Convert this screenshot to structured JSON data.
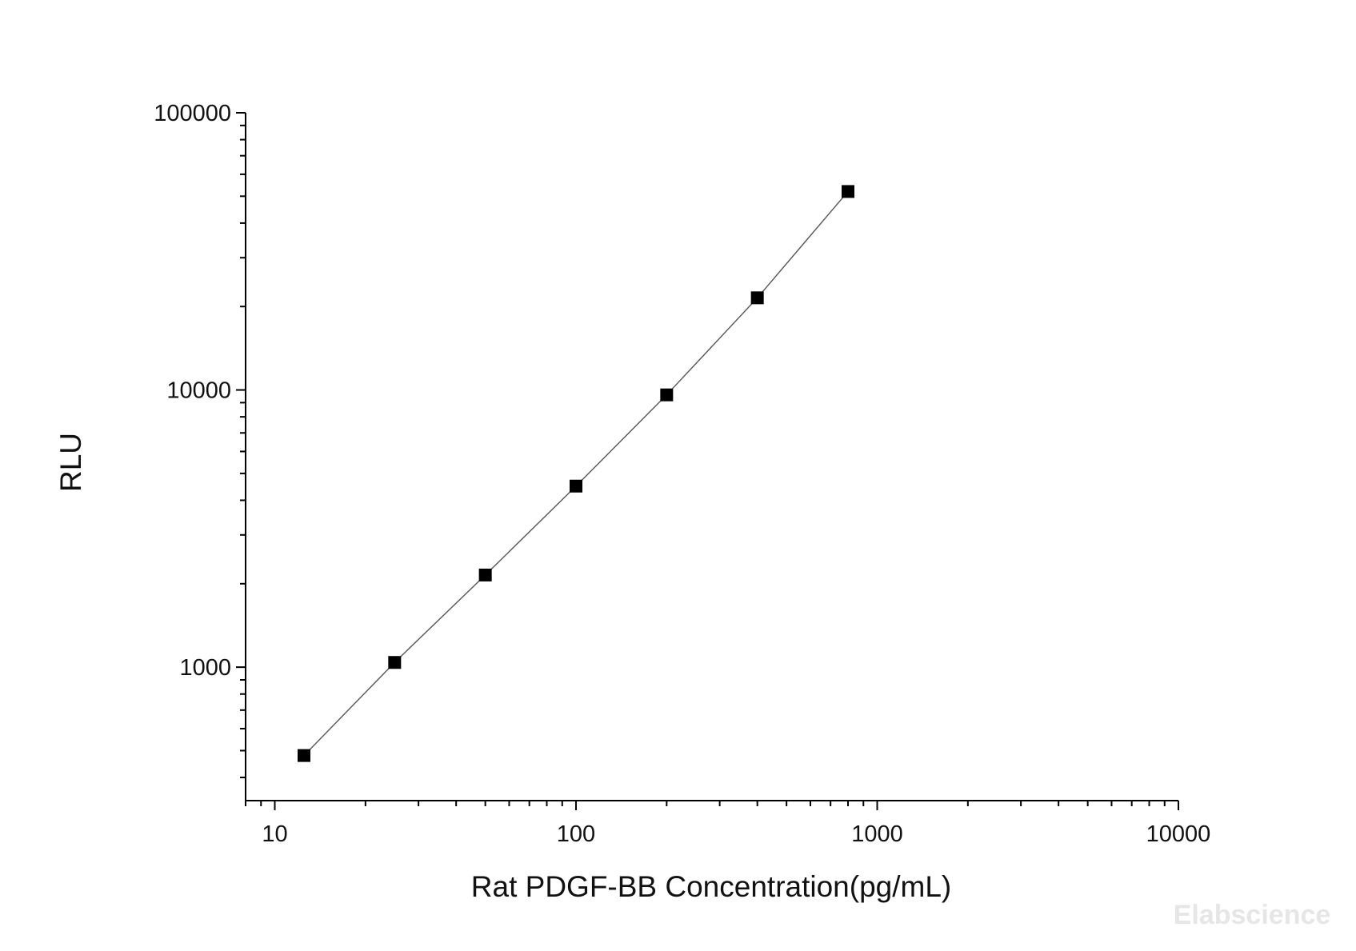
{
  "chart_data": {
    "type": "scatter",
    "title": "",
    "xlabel": "Rat PDGF-BB Concentration(pg/mL)",
    "ylabel": "RLU",
    "x_scale": "log",
    "y_scale": "log",
    "xlim": [
      8,
      10000
    ],
    "ylim": [
      330,
      100000
    ],
    "x_ticks": [
      10,
      100,
      1000,
      10000
    ],
    "x_tick_labels": [
      "10",
      "100",
      "1000",
      "10000"
    ],
    "y_ticks": [
      1000,
      10000,
      100000
    ],
    "y_tick_labels": [
      "1000",
      "10000",
      "100000"
    ],
    "grid": false,
    "legend": "none",
    "series": [
      {
        "marker": "square",
        "line": "fitted curve",
        "x": [
          12.5,
          25,
          50,
          100,
          200,
          400,
          800
        ],
        "y": [
          480,
          1040,
          2150,
          4500,
          9600,
          21500,
          52000
        ]
      }
    ],
    "watermark": "Elabscience",
    "colors": {
      "marker": "#000000",
      "line": "#555555",
      "axis": "#000000",
      "watermark": "#e6e6e6"
    }
  }
}
